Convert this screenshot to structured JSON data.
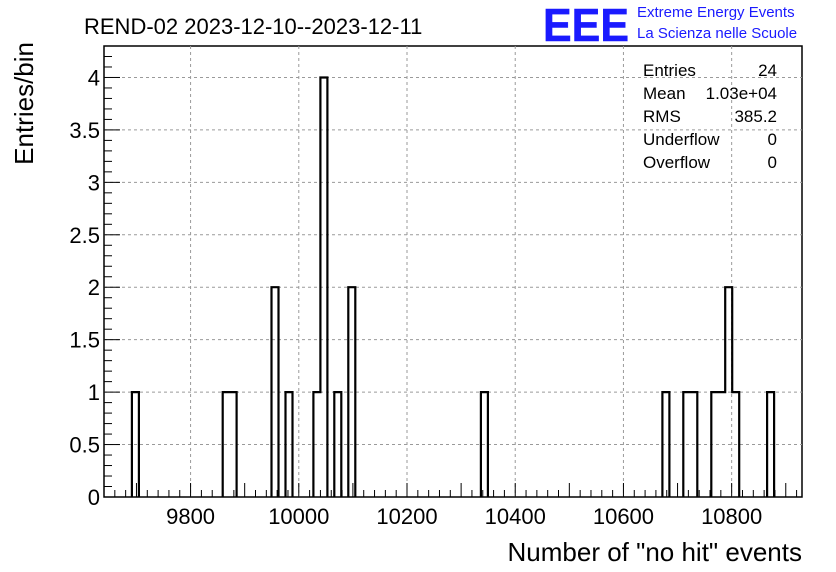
{
  "logo": {
    "mark": "EEE",
    "line1": "Extreme Energy Events",
    "line2": "La Scienza nelle Scuole",
    "color": "#1a1aff"
  },
  "stats": {
    "rows": [
      {
        "label": "Entries",
        "value": "24"
      },
      {
        "label": "Mean",
        "value": "1.03e+04"
      },
      {
        "label": "RMS",
        "value": "385.2"
      },
      {
        "label": "Underflow",
        "value": "0"
      },
      {
        "label": "Overflow",
        "value": "0"
      }
    ]
  },
  "chart_data": {
    "type": "bar",
    "style": "step-histogram",
    "title": "REND-02 2023-12-10--2023-12-11",
    "xlabel": "Number of \"no hit\" events",
    "ylabel": "Entries/bin",
    "xlim": [
      9640,
      10930
    ],
    "ylim": [
      0,
      4.3
    ],
    "bin_width": 12.9,
    "grid": true,
    "xticks": [
      9800,
      10000,
      10200,
      10400,
      10600,
      10800
    ],
    "yticks": [
      0,
      0.5,
      1,
      1.5,
      2,
      2.5,
      3,
      3.5,
      4
    ],
    "ytick_labels": [
      "0",
      "0.5",
      "1",
      "1.5",
      "2",
      "2.5",
      "3",
      "3.5",
      "4"
    ],
    "bins": [
      {
        "lo": 9691.6,
        "hi": 9704.5,
        "count": 1
      },
      {
        "lo": 9859.3,
        "hi": 9872.2,
        "count": 1
      },
      {
        "lo": 9872.2,
        "hi": 9885.1,
        "count": 1
      },
      {
        "lo": 9949.6,
        "hi": 9962.5,
        "count": 2
      },
      {
        "lo": 9975.4,
        "hi": 9988.3,
        "count": 1
      },
      {
        "lo": 10027.0,
        "hi": 10039.9,
        "count": 1
      },
      {
        "lo": 10039.9,
        "hi": 10052.8,
        "count": 4
      },
      {
        "lo": 10065.7,
        "hi": 10078.6,
        "count": 1
      },
      {
        "lo": 10091.5,
        "hi": 10104.4,
        "count": 2
      },
      {
        "lo": 10336.6,
        "hi": 10349.5,
        "count": 1
      },
      {
        "lo": 10672.0,
        "hi": 10684.9,
        "count": 1
      },
      {
        "lo": 10710.7,
        "hi": 10723.6,
        "count": 1
      },
      {
        "lo": 10723.6,
        "hi": 10736.5,
        "count": 1
      },
      {
        "lo": 10762.3,
        "hi": 10775.2,
        "count": 1
      },
      {
        "lo": 10775.2,
        "hi": 10788.1,
        "count": 1
      },
      {
        "lo": 10788.1,
        "hi": 10801.0,
        "count": 2
      },
      {
        "lo": 10801.0,
        "hi": 10813.9,
        "count": 1
      },
      {
        "lo": 10865.5,
        "hi": 10878.4,
        "count": 1
      }
    ]
  }
}
